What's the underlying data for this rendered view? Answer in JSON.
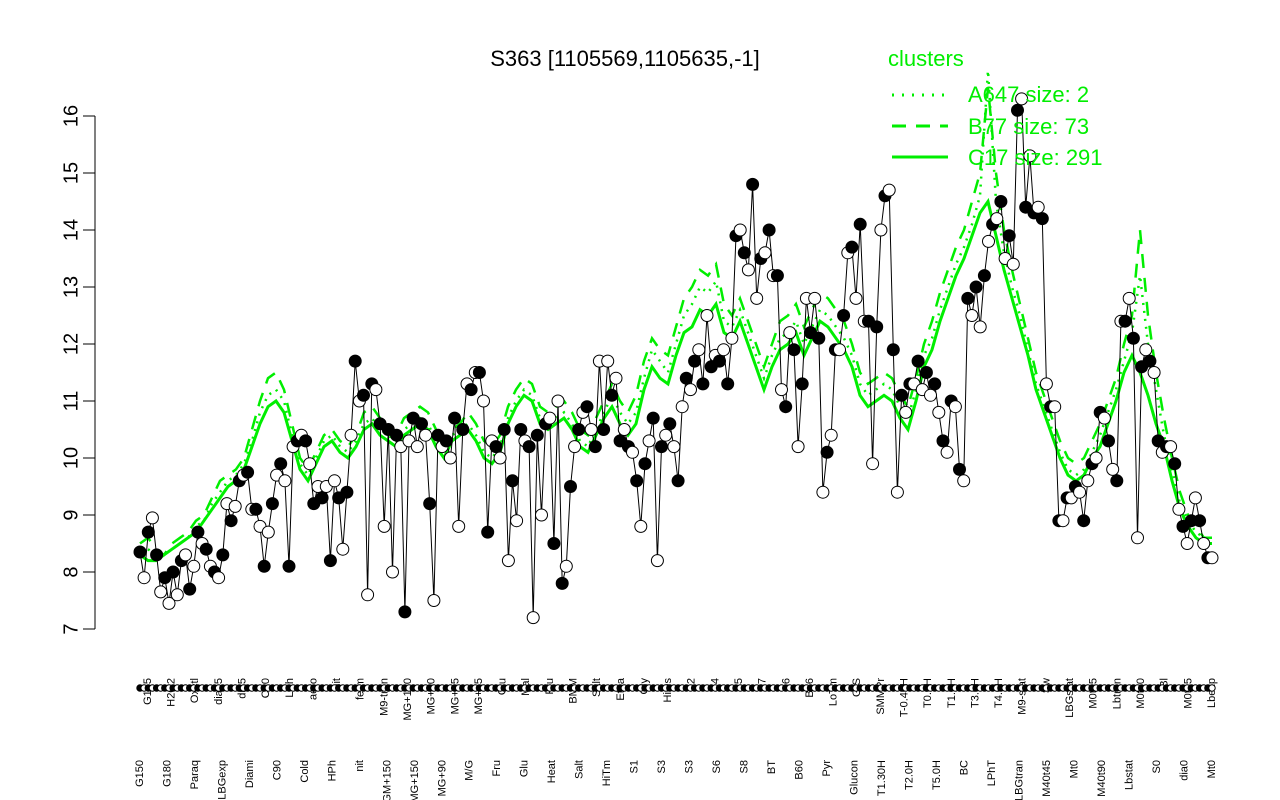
{
  "chart_data": {
    "type": "line",
    "title": "S363 [1105569,1105635,-1]",
    "xlabel": "",
    "ylabel": "",
    "ylim": [
      7,
      16.4
    ],
    "yticks": [
      7,
      8,
      9,
      10,
      11,
      12,
      13,
      14,
      15,
      16
    ],
    "grid": false,
    "legend": {
      "title": "clusters",
      "placement": "top-right",
      "entries": [
        {
          "label": "A647 size: 2",
          "style": "dotted",
          "color": "#00ee00"
        },
        {
          "label": "B77 size: 73",
          "style": "dashed",
          "color": "#00ee00"
        },
        {
          "label": "C17 size: 291",
          "style": "solid",
          "color": "#00ee00"
        }
      ]
    },
    "colors": {
      "points_line": "#000000",
      "clusters": "#00ee00",
      "open_fill": "#ffffff",
      "filled": "#000000"
    },
    "x_labels_upper": [
      "G135",
      "H2O2",
      "Oxctl",
      "dia15",
      "dia5",
      "C30",
      "LPh",
      "aero",
      "nit",
      "ferm",
      "M9-tran",
      "MG+120",
      "MG+60",
      "MG+45",
      "MG+15",
      "Glu",
      "Mal",
      "Fru",
      "BMM",
      "Salt",
      "Etha",
      "Gly",
      "HiOs",
      "S2",
      "S4",
      "S5",
      "S7",
      "S6",
      "B36",
      "LoTm",
      "G/S",
      "SMMPr",
      "T-0.40H",
      "T0.0H",
      "T1.0H",
      "T3.0H",
      "T4.0H",
      "M9-stat",
      "Sw",
      "LBGstat",
      "M0t45",
      "Lbtran",
      "M0t90",
      "Bl",
      "M0t45",
      "Lbexp"
    ],
    "x_labels_lower": [
      "G150",
      "G180",
      "Paraq",
      "LBGexp",
      "Diami",
      "C90",
      "Cold",
      "HPh",
      "nit",
      "GM+150",
      "MG+150",
      "MG+90",
      "M/G",
      "Fru",
      "Glu",
      "Heat",
      "Salt",
      "HiTm",
      "S1",
      "S3",
      "S3",
      "S6",
      "S8",
      "BT",
      "B60",
      "Pyr",
      "Glucon",
      "T1.30H",
      "T2.0H",
      "T5.0H",
      "BC",
      "LPhT",
      "LBGtran",
      "M40t45",
      "Mt0",
      "M40t90",
      "Lbstat",
      "S0",
      "dia0",
      "Mt0"
    ],
    "series": [
      {
        "name": "",
        "y": [
          8.35,
          7.9,
          8.7,
          8.95,
          8.3,
          7.65,
          7.9,
          7.45,
          8.0,
          7.6,
          8.2,
          8.3,
          7.7,
          8.1,
          8.7,
          8.5,
          8.4,
          8.1,
          8.0,
          7.9,
          8.3,
          9.2,
          8.9,
          9.15,
          9.6,
          9.7,
          9.75,
          9.1,
          9.1,
          8.8,
          8.1,
          8.7,
          9.2,
          9.7,
          9.9,
          9.6,
          8.1,
          10.2,
          10.3,
          10.4,
          10.3,
          9.9,
          9.2,
          9.5,
          9.3,
          9.5,
          8.2,
          9.6,
          9.3,
          8.4,
          9.4,
          10.4,
          11.7,
          11.0,
          11.1,
          7.6,
          11.3,
          11.2,
          10.6,
          8.8,
          10.5,
          8.0,
          10.4,
          10.2,
          7.3,
          10.3,
          10.7,
          10.2,
          10.6,
          10.4,
          9.2,
          7.5,
          10.4,
          10.2,
          10.3,
          10.0,
          10.7,
          8.8,
          10.5,
          11.3,
          11.2,
          11.5,
          11.5,
          11.0,
          8.7,
          10.3,
          10.2,
          10.0,
          10.5,
          8.2,
          9.6,
          8.9,
          10.5,
          10.3,
          10.2,
          7.2,
          10.4,
          9.0,
          10.6,
          10.7,
          8.5,
          11.0,
          7.8,
          8.1,
          9.5,
          10.2,
          10.5,
          10.8,
          10.9,
          10.5,
          10.2,
          11.7,
          10.5,
          11.7,
          11.1,
          11.4,
          10.3,
          10.5,
          10.2,
          10.1,
          9.6,
          8.8,
          9.9,
          10.3,
          10.7,
          8.2,
          10.2,
          10.4,
          10.6,
          10.2,
          9.6,
          10.9,
          11.4,
          11.2,
          11.7,
          11.9,
          11.3,
          12.5,
          11.6,
          11.8,
          11.7,
          11.9,
          11.3,
          12.1,
          13.9,
          14.0,
          13.6,
          13.3,
          14.8,
          12.8,
          13.5,
          13.6,
          14.0,
          13.2,
          13.2,
          11.2,
          10.9,
          12.2,
          11.9,
          10.2,
          11.3,
          12.8,
          12.2,
          12.8,
          12.1,
          9.4,
          10.1,
          10.4,
          11.9,
          11.9,
          12.5,
          13.6,
          13.7,
          12.8,
          14.1,
          12.4,
          12.4,
          9.9,
          12.3,
          14.0,
          14.6,
          14.7,
          11.9,
          9.4,
          11.1,
          10.8,
          11.3,
          11.3,
          11.7,
          11.2,
          11.5,
          11.1,
          11.3,
          10.8,
          10.3,
          10.1,
          11.0,
          10.9,
          9.8,
          9.6,
          12.8,
          12.5,
          13.0,
          12.3,
          13.2,
          13.8,
          14.1,
          14.2,
          14.5,
          13.5,
          13.9,
          13.4,
          16.1,
          16.3,
          14.4,
          15.3,
          14.3,
          14.4,
          14.2,
          11.3,
          10.9,
          10.9,
          8.9,
          8.9,
          9.3,
          9.3,
          9.5,
          9.4,
          8.9,
          9.6,
          9.9,
          10.0,
          10.8,
          10.7,
          10.3,
          9.8,
          9.6,
          12.4,
          12.4,
          12.8,
          12.1,
          8.6,
          11.6,
          11.9,
          11.7,
          11.5,
          10.3,
          10.1,
          10.2,
          10.2,
          9.9,
          9.1,
          8.8,
          8.5,
          8.9,
          9.3,
          8.9,
          8.5,
          8.25,
          8.25
        ]
      }
    ],
    "markers": "alternating filled and open circles",
    "cluster_lines": [
      {
        "name": "C17 size: 291",
        "style": "solid",
        "y": [
          8.3,
          8.2,
          8.2,
          8.3,
          8.4,
          8.5,
          8.6,
          8.7,
          8.9,
          9.1,
          9.3,
          9.5,
          9.6,
          9.8,
          10.2,
          10.6,
          10.9,
          11.0,
          10.8,
          10.3,
          9.8,
          9.6,
          9.9,
          10.2,
          10.3,
          10.1,
          10.0,
          10.2,
          10.5,
          10.6,
          10.4,
          10.3,
          10.2,
          10.4,
          10.5,
          10.6,
          10.5,
          10.2,
          10.0,
          10.3,
          10.4,
          10.5,
          10.3,
          10.0,
          9.9,
          10.1,
          10.6,
          10.9,
          11.1,
          11.0,
          10.6,
          10.5,
          10.6,
          10.7,
          10.5,
          10.2,
          10.1,
          10.4,
          10.7,
          10.9,
          10.6,
          10.4,
          10.6,
          11.2,
          11.6,
          11.4,
          11.3,
          11.8,
          12.2,
          12.3,
          12.6,
          12.5,
          12.7,
          12.2,
          12.1,
          12.4,
          12.0,
          11.6,
          11.2,
          11.6,
          11.9,
          12.0,
          12.2,
          11.8,
          12.1,
          12.4,
          12.3,
          12.1,
          11.9,
          11.6,
          11.1,
          10.9,
          11.0,
          11.1,
          11.0,
          10.7,
          10.5,
          11.0,
          11.6,
          11.9,
          12.4,
          12.8,
          13.2,
          13.5,
          13.9,
          14.3,
          14.5,
          13.9,
          13.3,
          12.8,
          12.3,
          11.8,
          11.2,
          10.8,
          10.4,
          10.0,
          9.7,
          9.6,
          9.7,
          10.0,
          10.2,
          10.6,
          11.0,
          11.5,
          11.8,
          11.5,
          11.1,
          10.6,
          10.2,
          9.6,
          9.1,
          8.8,
          8.6,
          8.5,
          8.5
        ]
      },
      {
        "name": "B77 size: 73",
        "style": "dashed",
        "y": [
          8.5,
          8.6,
          8.4,
          8.3,
          8.5,
          8.6,
          8.7,
          8.9,
          9.0,
          9.3,
          9.6,
          9.7,
          9.8,
          10.0,
          10.5,
          11.0,
          11.4,
          11.5,
          11.2,
          10.6,
          10.0,
          9.8,
          10.1,
          10.4,
          10.5,
          10.3,
          10.2,
          10.4,
          10.8,
          10.9,
          10.7,
          10.5,
          10.4,
          10.7,
          10.8,
          10.9,
          10.8,
          10.5,
          10.2,
          10.5,
          10.6,
          10.8,
          10.6,
          10.3,
          10.2,
          10.4,
          10.9,
          11.2,
          11.4,
          11.3,
          10.9,
          10.8,
          10.9,
          11.0,
          10.8,
          10.5,
          10.4,
          10.7,
          11.0,
          11.3,
          11.0,
          10.8,
          11.1,
          11.7,
          12.1,
          11.9,
          11.8,
          12.3,
          12.8,
          13.0,
          13.3,
          13.2,
          13.4,
          12.7,
          12.5,
          12.8,
          12.4,
          12.0,
          11.6,
          12.0,
          12.4,
          12.5,
          12.7,
          12.3,
          12.6,
          12.9,
          12.8,
          12.6,
          12.4,
          12.0,
          11.5,
          11.3,
          11.4,
          11.5,
          11.4,
          11.1,
          10.9,
          11.4,
          12.0,
          12.4,
          12.9,
          13.3,
          13.7,
          14.0,
          14.5,
          15.0,
          16.5,
          15.0,
          14.0,
          13.3,
          12.7,
          12.1,
          11.5,
          11.1,
          10.7,
          10.3,
          10.0,
          9.9,
          10.0,
          10.3,
          10.6,
          11.0,
          11.4,
          12.0,
          12.5,
          14.0,
          12.5,
          11.5,
          10.7,
          10.0,
          9.4,
          9.0,
          8.8,
          8.6,
          8.6
        ]
      },
      {
        "name": "A647 size: 2",
        "style": "dotted",
        "y": [
          8.4,
          8.4,
          8.3,
          8.3,
          8.4,
          8.5,
          8.6,
          8.8,
          8.9,
          9.2,
          9.4,
          9.6,
          9.7,
          9.9,
          10.3,
          10.8,
          11.1,
          11.2,
          11.0,
          10.4,
          9.9,
          9.7,
          10.0,
          10.3,
          10.4,
          10.2,
          10.1,
          10.3,
          10.6,
          10.7,
          10.5,
          10.4,
          10.3,
          10.5,
          10.6,
          10.7,
          10.6,
          10.3,
          10.1,
          10.4,
          10.5,
          10.6,
          10.4,
          10.1,
          10.0,
          10.2,
          10.7,
          11.0,
          11.2,
          11.1,
          10.7,
          10.6,
          10.7,
          10.8,
          10.6,
          10.3,
          10.2,
          10.5,
          10.8,
          11.1,
          10.8,
          10.6,
          10.8,
          11.4,
          11.9,
          11.7,
          11.5,
          12.0,
          12.5,
          12.7,
          13.0,
          12.9,
          13.1,
          12.4,
          12.3,
          12.6,
          12.2,
          11.8,
          11.4,
          11.8,
          12.1,
          12.2,
          12.4,
          12.0,
          12.3,
          12.6,
          12.5,
          12.3,
          12.1,
          11.8,
          11.3,
          11.1,
          11.2,
          11.3,
          11.2,
          10.9,
          10.7,
          11.2,
          11.8,
          12.1,
          12.6,
          13.0,
          13.4,
          13.7,
          14.1,
          14.6,
          16.8,
          14.5,
          13.6,
          13.0,
          12.5,
          11.9,
          11.3,
          10.9,
          10.5,
          10.1,
          9.8,
          9.7,
          9.8,
          10.1,
          10.4,
          10.8,
          11.2,
          11.7,
          12.2,
          13.2,
          12.0,
          11.2,
          10.4,
          9.8,
          9.2,
          8.9,
          8.7,
          8.6,
          8.6
        ]
      }
    ]
  }
}
